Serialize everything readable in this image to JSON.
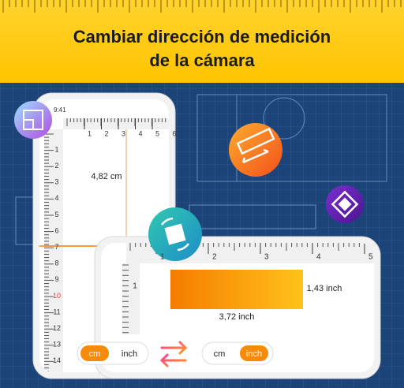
{
  "header": {
    "title_line1": "Cambiar dirección de medición",
    "title_line2": "de la cámara"
  },
  "phone_portrait": {
    "time": "9:41",
    "top_ruler": [
      "1",
      "2",
      "3",
      "4",
      "5",
      "6"
    ],
    "side_ruler": [
      "1",
      "2",
      "3",
      "4",
      "5",
      "6",
      "7",
      "8",
      "9",
      "10",
      "11",
      "12",
      "13",
      "14"
    ],
    "measurement": "4,82 cm"
  },
  "phone_landscape": {
    "top_ruler": [
      "1",
      "2",
      "3",
      "4",
      "5"
    ],
    "side_ruler": [
      "1"
    ],
    "height_label": "1,43 inch",
    "width_label": "3,72 inch"
  },
  "unit_toggles": [
    {
      "options": [
        "cm",
        "inch"
      ],
      "active": 0
    },
    {
      "options": [
        "cm",
        "inch"
      ],
      "active": 1
    }
  ]
}
